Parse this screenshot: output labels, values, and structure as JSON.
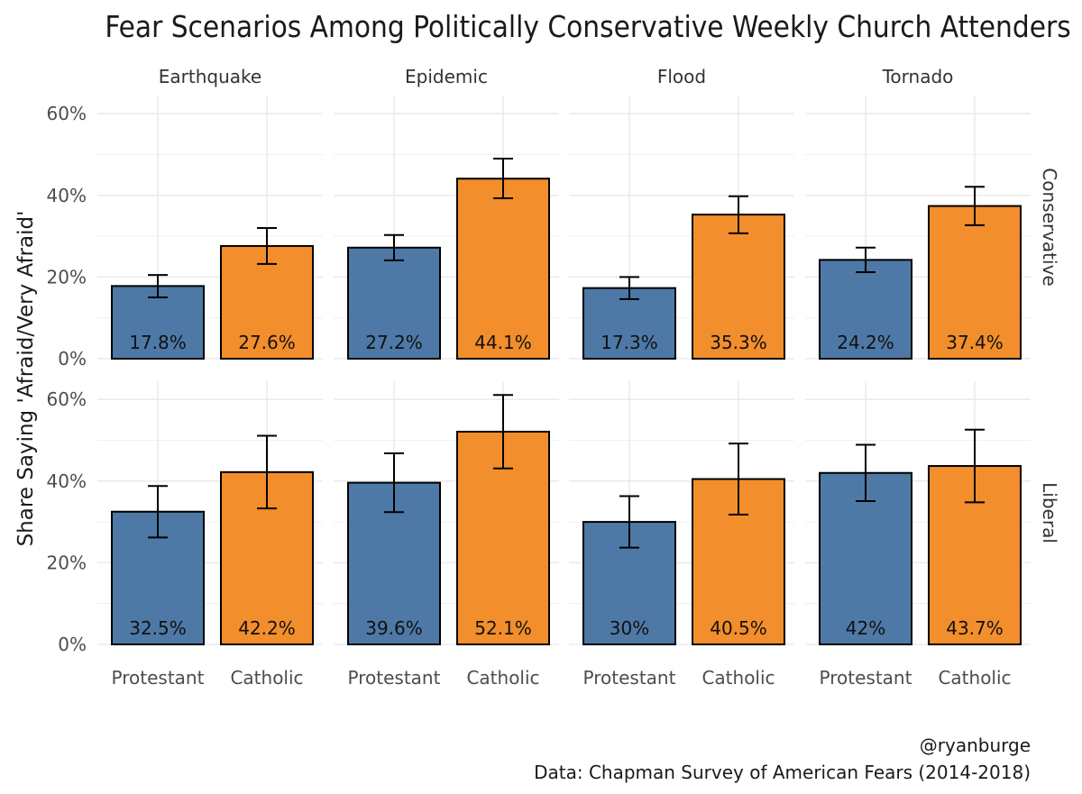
{
  "chart_data": {
    "type": "bar",
    "title": "Fear Scenarios Among Politically Conservative Weekly Church Attenders",
    "ylabel": "Share Saying 'Afraid/Very Afraid'",
    "xlabel": "",
    "categories": [
      "Protestant",
      "Catholic"
    ],
    "ylim": [
      0,
      60
    ],
    "y_ticks": [
      "0%",
      "20%",
      "40%",
      "60%"
    ],
    "grid": true,
    "facet_columns": [
      "Earthquake",
      "Epidemic",
      "Flood",
      "Tornado"
    ],
    "facet_rows": [
      "Conservative",
      "Liberal"
    ],
    "colors": {
      "Protestant": "#4e79a7",
      "Catholic": "#f28e2b"
    },
    "panels": [
      {
        "row": "Conservative",
        "column": "Earthquake",
        "values": [
          17.8,
          27.6
        ],
        "labels": [
          "17.8%",
          "27.6%"
        ],
        "error_low": [
          15.0,
          23.2
        ],
        "error_high": [
          20.5,
          32.0
        ]
      },
      {
        "row": "Conservative",
        "column": "Epidemic",
        "values": [
          27.2,
          44.1
        ],
        "labels": [
          "27.2%",
          "44.1%"
        ],
        "error_low": [
          24.1,
          39.3
        ],
        "error_high": [
          30.3,
          49.0
        ]
      },
      {
        "row": "Conservative",
        "column": "Flood",
        "values": [
          17.3,
          35.3
        ],
        "labels": [
          "17.3%",
          "35.3%"
        ],
        "error_low": [
          14.6,
          30.7
        ],
        "error_high": [
          20.0,
          39.8
        ]
      },
      {
        "row": "Conservative",
        "column": "Tornado",
        "values": [
          24.2,
          37.4
        ],
        "labels": [
          "24.2%",
          "37.4%"
        ],
        "error_low": [
          21.2,
          32.7
        ],
        "error_high": [
          27.2,
          42.1
        ]
      },
      {
        "row": "Liberal",
        "column": "Earthquake",
        "values": [
          32.5,
          42.2
        ],
        "labels": [
          "32.5%",
          "42.2%"
        ],
        "error_low": [
          26.2,
          33.3
        ],
        "error_high": [
          38.8,
          51.1
        ]
      },
      {
        "row": "Liberal",
        "column": "Epidemic",
        "values": [
          39.6,
          52.1
        ],
        "labels": [
          "39.6%",
          "52.1%"
        ],
        "error_low": [
          32.4,
          43.1
        ],
        "error_high": [
          46.8,
          61.1
        ]
      },
      {
        "row": "Liberal",
        "column": "Flood",
        "values": [
          30.0,
          40.5
        ],
        "labels": [
          "30%",
          "40.5%"
        ],
        "error_low": [
          23.7,
          31.8
        ],
        "error_high": [
          36.3,
          49.2
        ]
      },
      {
        "row": "Liberal",
        "column": "Tornado",
        "values": [
          42.0,
          43.7
        ],
        "labels": [
          "42%",
          "43.7%"
        ],
        "error_low": [
          35.1,
          34.8
        ],
        "error_high": [
          48.9,
          52.6
        ]
      }
    ]
  },
  "caption": {
    "handle": "@ryanburge",
    "source": "Data: Chapman Survey of American Fears (2014-2018)"
  }
}
